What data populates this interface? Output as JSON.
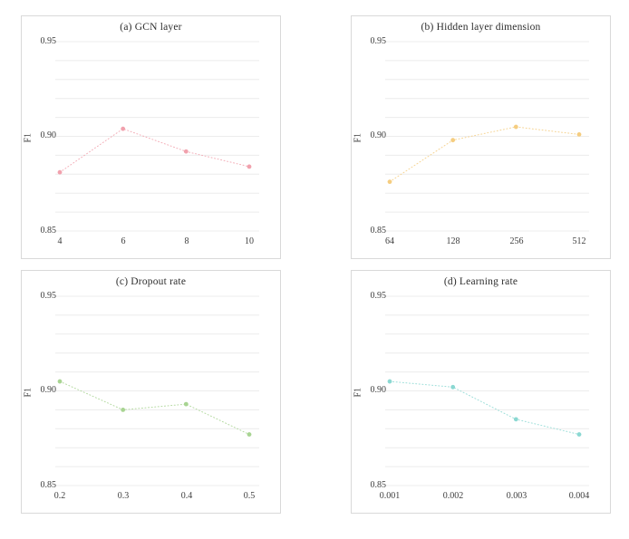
{
  "style": {
    "background": "#ffffff",
    "panel_border_color": "#d9d9d9",
    "grid_color": "#ececec",
    "text_color": "#3d3d3d"
  },
  "chart_data": [
    {
      "type": "line",
      "title": "(a) GCN layer",
      "xlabel": "",
      "ylabel": "F1",
      "categories": [
        "4",
        "6",
        "8",
        "10"
      ],
      "values": [
        0.881,
        0.904,
        0.892,
        0.884
      ],
      "ylim": [
        0.85,
        0.95
      ],
      "yticks": [
        "0.95",
        "0.90",
        "0.85"
      ],
      "grid": true,
      "grid_interval": 0.01,
      "legend": "none",
      "line_style": "dotted",
      "marker": "circle",
      "color": "#f1a1ad"
    },
    {
      "type": "line",
      "title": "(b) Hidden layer dimension",
      "xlabel": "",
      "ylabel": "F1",
      "categories": [
        "64",
        "128",
        "256",
        "512"
      ],
      "values": [
        0.876,
        0.898,
        0.905,
        0.901
      ],
      "ylim": [
        0.85,
        0.95
      ],
      "yticks": [
        "0.95",
        "0.90",
        "0.85"
      ],
      "grid": true,
      "grid_interval": 0.01,
      "legend": "none",
      "line_style": "dotted",
      "marker": "circle",
      "color": "#f5cd80"
    },
    {
      "type": "line",
      "title": "(c) Dropout rate",
      "xlabel": "",
      "ylabel": "F1",
      "categories": [
        "0.2",
        "0.3",
        "0.4",
        "0.5"
      ],
      "values": [
        0.905,
        0.89,
        0.893,
        0.877
      ],
      "ylim": [
        0.85,
        0.95
      ],
      "yticks": [
        "0.95",
        "0.90",
        "0.85"
      ],
      "grid": true,
      "grid_interval": 0.01,
      "legend": "none",
      "line_style": "dotted",
      "marker": "circle",
      "color": "#a8d492"
    },
    {
      "type": "line",
      "title": "(d) Learning rate",
      "xlabel": "",
      "ylabel": "F1",
      "categories": [
        "0.001",
        "0.002",
        "0.003",
        "0.004"
      ],
      "values": [
        0.905,
        0.902,
        0.885,
        0.877
      ],
      "ylim": [
        0.85,
        0.95
      ],
      "yticks": [
        "0.95",
        "0.90",
        "0.85"
      ],
      "grid": true,
      "grid_interval": 0.01,
      "legend": "none",
      "line_style": "dotted",
      "marker": "circle",
      "color": "#8bd8d2"
    }
  ]
}
